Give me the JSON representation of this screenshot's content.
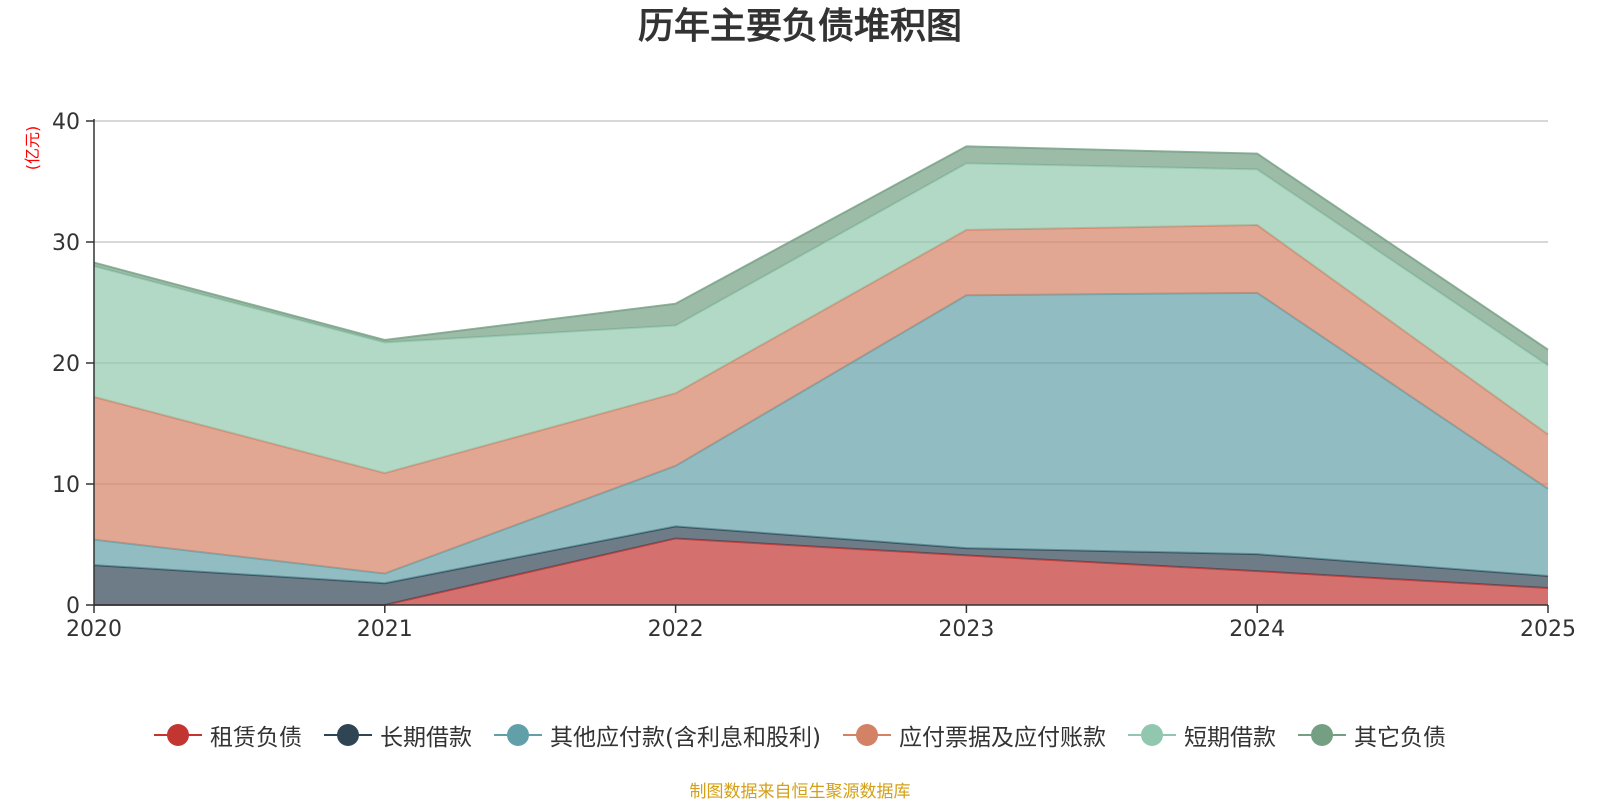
{
  "chart_data": {
    "type": "area",
    "stacked": true,
    "title": "历年主要负债堆积图",
    "ylabel": "(亿元)",
    "xlabel": "",
    "ylim": [
      0,
      40
    ],
    "yticks": [
      0,
      10,
      20,
      30,
      40
    ],
    "grid": true,
    "legend_position": "bottom",
    "categories": [
      "2020",
      "2021",
      "2022",
      "2023",
      "2024",
      "2025"
    ],
    "series": [
      {
        "name": "租赁负债",
        "color": "#c23531",
        "values": [
          0,
          0,
          5.5,
          4.1,
          2.8,
          1.4
        ]
      },
      {
        "name": "长期借款",
        "color": "#2f4554",
        "values": [
          3.3,
          1.8,
          1.0,
          0.6,
          1.4,
          1.0
        ]
      },
      {
        "name": "其他应付款(含利息和股利)",
        "color": "#61a0a8",
        "values": [
          2.1,
          0.8,
          5.0,
          20.9,
          21.6,
          7.2
        ]
      },
      {
        "name": "应付票据及应付账款",
        "color": "#d48265",
        "values": [
          11.8,
          8.3,
          6.0,
          5.4,
          5.6,
          4.5
        ]
      },
      {
        "name": "短期借款",
        "color": "#91c7ae",
        "values": [
          10.8,
          10.8,
          5.6,
          5.5,
          4.6,
          5.7
        ]
      },
      {
        "name": "其它负债",
        "color": "#749f83",
        "values": [
          0.3,
          0.2,
          1.8,
          1.4,
          1.3,
          1.3
        ]
      }
    ]
  },
  "footer": {
    "source": "制图数据来自恒生聚源数据库"
  }
}
